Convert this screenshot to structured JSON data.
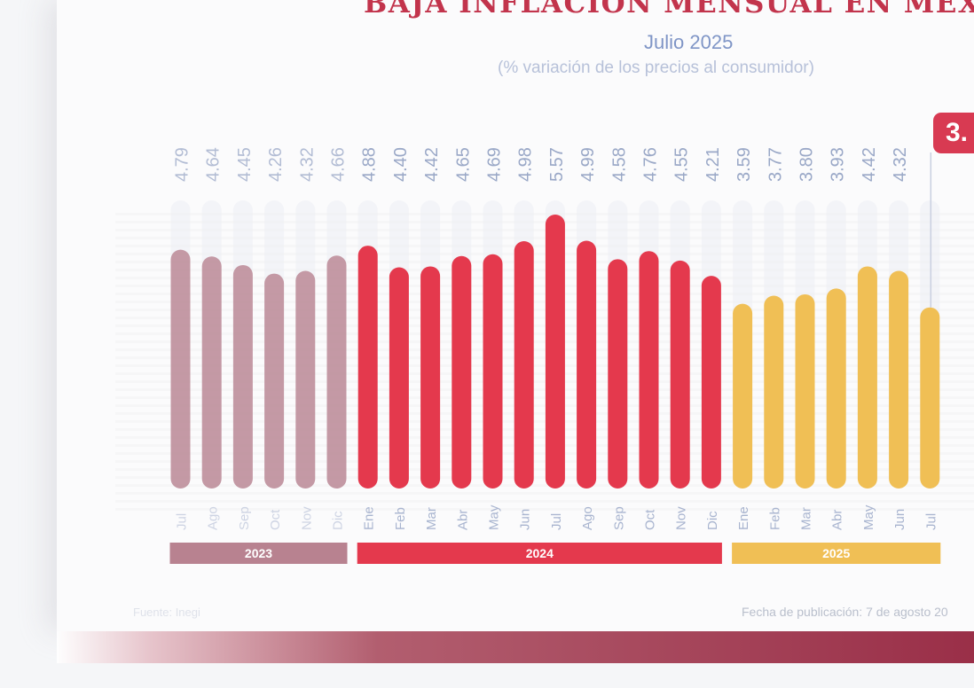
{
  "header": {
    "title": "BAJA INFLACIÓN MENSUAL EN MÉX",
    "subtitle": "Julio 2025",
    "note": "(% variación de los precios al consumidor)",
    "badge": "3."
  },
  "footer": {
    "source": "Fuente: Inegi",
    "pub_date": "Fecha de publicación: 7 de agosto 20"
  },
  "colors": {
    "y2023": "#b88290",
    "y2024": "#e4394d",
    "y2025": "#f0bf55",
    "title": "#c2344c",
    "value_text": "#9aa8c7"
  },
  "chart_data": {
    "type": "bar",
    "title": "BAJA INFLACIÓN MENSUAL EN MÉX",
    "subtitle": "Julio 2025",
    "ylabel": "(% variación de los precios al consumidor)",
    "categories": [
      "Jul",
      "Ago",
      "Sep",
      "Oct",
      "Nov",
      "Dic",
      "Ene",
      "Feb",
      "Mar",
      "Abr",
      "May",
      "Jun",
      "Jul",
      "Ago",
      "Sep",
      "Oct",
      "Nov",
      "Dic",
      "Ene",
      "Feb",
      "Mar",
      "Abr",
      "May",
      "Jun",
      "Jul"
    ],
    "values": [
      4.79,
      4.64,
      4.45,
      4.26,
      4.32,
      4.66,
      4.88,
      4.4,
      4.42,
      4.65,
      4.69,
      4.98,
      5.57,
      4.99,
      4.58,
      4.76,
      4.55,
      4.21,
      3.59,
      3.77,
      3.8,
      3.93,
      4.42,
      4.32,
      3.51
    ],
    "value_labels": [
      "4.79",
      "4.64",
      "4.45",
      "4.26",
      "4.32",
      "4.66",
      "4.88",
      "4.40",
      "4.42",
      "4.65",
      "4.69",
      "4.98",
      "5.57",
      "4.99",
      "4.58",
      "4.76",
      "4.55",
      "4.21",
      "3.59",
      "3.77",
      "3.80",
      "3.93",
      "4.42",
      "4.32",
      ""
    ],
    "years": [
      {
        "label": "2023",
        "start": 0,
        "end": 5,
        "color_key": "y2023"
      },
      {
        "label": "2024",
        "start": 6,
        "end": 17,
        "color_key": "y2024"
      },
      {
        "label": "2025",
        "start": 18,
        "end": 24,
        "color_key": "y2025"
      }
    ],
    "grid": false,
    "legend": "none"
  }
}
